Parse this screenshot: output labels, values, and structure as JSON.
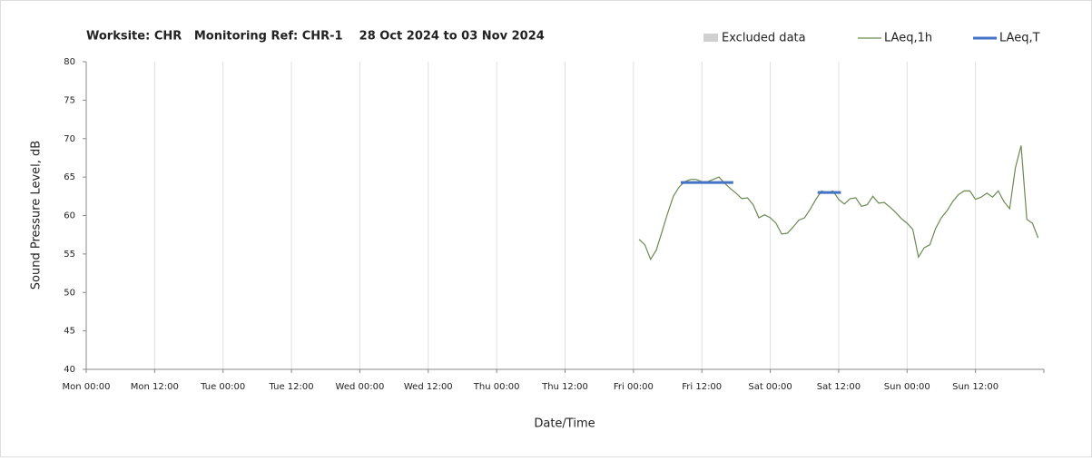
{
  "chart_data": {
    "type": "line",
    "title": "Worksite: CHR   Monitoring Ref: CHR-1    28 Oct 2024 to 03 Nov 2024",
    "xlabel": "Date/Time",
    "ylabel": "Sound Pressure Level, dB",
    "xlim": [
      0,
      168
    ],
    "xticks": [
      {
        "value": 0,
        "label": "Mon 00:00"
      },
      {
        "value": 12,
        "label": "Mon 12:00"
      },
      {
        "value": 24,
        "label": "Tue 00:00"
      },
      {
        "value": 36,
        "label": "Tue 12:00"
      },
      {
        "value": 48,
        "label": "Wed 00:00"
      },
      {
        "value": 60,
        "label": "Wed 12:00"
      },
      {
        "value": 72,
        "label": "Thu 00:00"
      },
      {
        "value": 84,
        "label": "Thu 12:00"
      },
      {
        "value": 96,
        "label": "Fri 00:00"
      },
      {
        "value": 108,
        "label": "Fri 12:00"
      },
      {
        "value": 120,
        "label": "Sat 00:00"
      },
      {
        "value": 132,
        "label": "Sat 12:00"
      },
      {
        "value": 144,
        "label": "Sun 00:00"
      },
      {
        "value": 156,
        "label": "Sun 12:00"
      }
    ],
    "ylim": [
      40,
      80
    ],
    "yticks": [
      40,
      45,
      50,
      55,
      60,
      65,
      70,
      75,
      80
    ],
    "grid": true,
    "legend": "top-right",
    "series": [
      {
        "name": "Excluded data",
        "color": "#d0d0d0",
        "x": [],
        "values": []
      },
      {
        "name": "LAeq,1h",
        "color": "#6b8a52",
        "x": [
          97,
          98,
          99,
          100,
          101,
          102,
          103,
          104,
          105,
          106,
          107,
          108,
          109,
          110,
          111,
          112,
          113,
          114,
          115,
          116,
          117,
          118,
          119,
          120,
          121,
          122,
          123,
          124,
          125,
          126,
          127,
          128,
          129,
          130,
          131,
          132,
          133,
          134,
          135,
          136,
          137,
          138,
          139,
          140,
          141,
          142,
          143,
          144,
          145,
          146,
          147,
          148,
          149,
          150,
          151,
          152,
          153,
          154,
          155,
          156,
          157,
          158,
          159,
          160,
          161,
          162,
          163,
          164,
          165,
          166,
          167
        ],
        "values": [
          56.9,
          56.2,
          54.3,
          55.5,
          57.9,
          60.3,
          62.5,
          63.7,
          64.4,
          64.7,
          64.7,
          64.4,
          64.4,
          64.7,
          65.0,
          64.2,
          63.5,
          62.9,
          62.2,
          62.3,
          61.4,
          59.7,
          60.1,
          59.7,
          59.0,
          57.6,
          57.7,
          58.5,
          59.4,
          59.7,
          60.8,
          62.1,
          63.2,
          62.9,
          63.2,
          62.1,
          61.5,
          62.2,
          62.3,
          61.2,
          61.4,
          62.5,
          61.6,
          61.7,
          61.1,
          60.4,
          59.6,
          59.0,
          58.2,
          54.6,
          55.8,
          56.2,
          58.3,
          59.7,
          60.6,
          61.8,
          62.7,
          63.2,
          63.2,
          62.1,
          62.4,
          62.9,
          62.4,
          63.2,
          61.8,
          60.9,
          66.2,
          69.1,
          59.5,
          59.0,
          57.1
        ]
      },
      {
        "name": "LAeq,T",
        "color": "#4472c4",
        "x": [
          104.3,
          113.5,
          120,
          128.3,
          132.4
        ],
        "values": [
          64.3,
          64.3,
          null,
          63.0,
          63.0
        ]
      }
    ]
  }
}
